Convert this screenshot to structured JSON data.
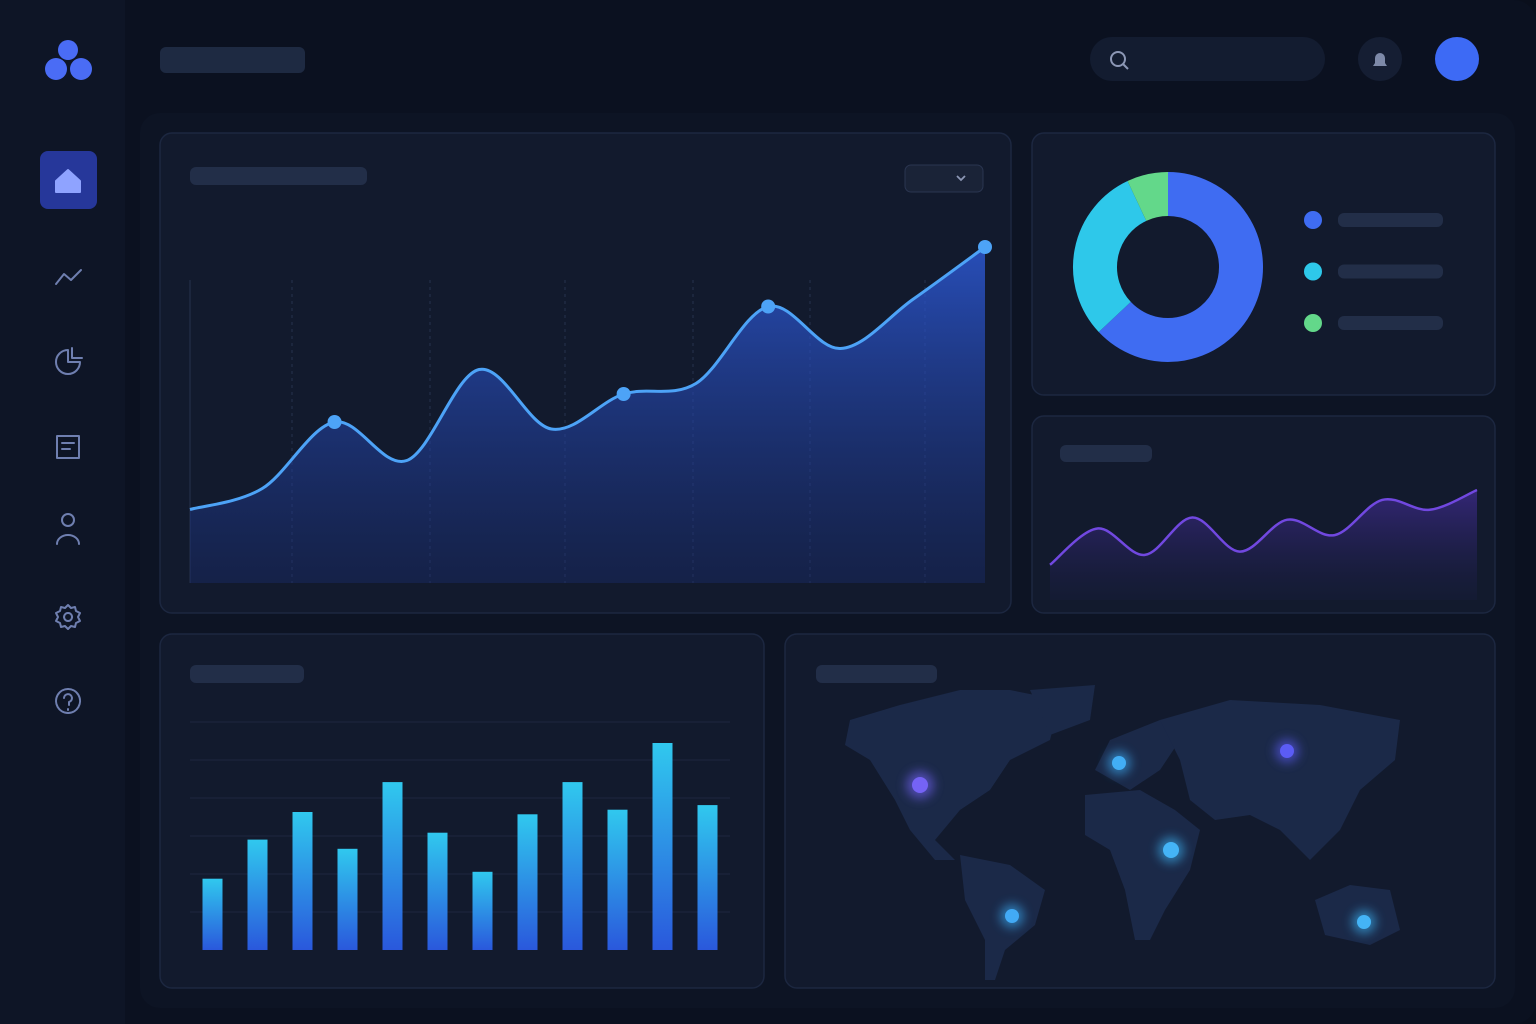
{
  "main_chart": {
    "type": "line",
    "values": [
      21,
      27,
      46,
      35,
      61,
      44,
      54,
      57,
      79,
      67,
      81,
      96
    ],
    "markers": [
      2,
      6,
      8,
      11
    ],
    "color": "#4da3f7",
    "ylim": [
      0,
      100
    ]
  },
  "donut_chart": {
    "type": "pie",
    "values": [
      63,
      30,
      7
    ],
    "colors": [
      "#3f6cf2",
      "#2ec8ea",
      "#63d88a"
    ]
  },
  "mini_chart": {
    "type": "area",
    "values": [
      32,
      65,
      41,
      75,
      44,
      73,
      59,
      91,
      82,
      100
    ],
    "color": "#7148e0",
    "ylim": [
      0,
      100
    ]
  },
  "bar_chart": {
    "type": "bar",
    "values": [
      31,
      48,
      60,
      44,
      73,
      51,
      34,
      59,
      73,
      61,
      90,
      63
    ],
    "ylim": [
      0,
      100
    ]
  }
}
